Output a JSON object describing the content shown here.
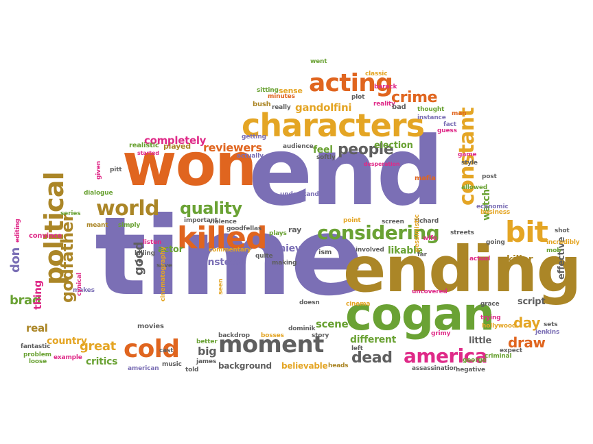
{
  "colors": {
    "purple": "#7b6fb5",
    "orange": "#e0651f",
    "green": "#6aa234",
    "gold": "#e4a524",
    "olive": "#ab8627",
    "gray": "#5f5f5f",
    "pink": "#df2a88"
  },
  "words": [
    {
      "t": "end",
      "c": "purple"
    },
    {
      "t": "time",
      "c": "purple"
    },
    {
      "t": "won",
      "c": "orange"
    },
    {
      "t": "ending",
      "c": "olive"
    },
    {
      "t": "cogan",
      "c": "green"
    },
    {
      "t": "characters",
      "c": "gold"
    },
    {
      "t": "political",
      "c": "olive"
    },
    {
      "t": "killed",
      "c": "orange"
    },
    {
      "t": "moment",
      "c": "gray"
    },
    {
      "t": "cold",
      "c": "orange"
    },
    {
      "t": "acting",
      "c": "orange"
    },
    {
      "t": "world",
      "c": "olive"
    },
    {
      "t": "bit",
      "c": "gold"
    },
    {
      "t": "considering",
      "c": "green"
    },
    {
      "t": "constant",
      "c": "gold"
    },
    {
      "t": "america",
      "c": "pink"
    },
    {
      "t": "quality",
      "c": "green"
    },
    {
      "t": "godfather",
      "c": "olive"
    },
    {
      "t": "crime",
      "c": "orange"
    },
    {
      "t": "people",
      "c": "gray"
    },
    {
      "t": "dead",
      "c": "gray"
    },
    {
      "t": "reviewers",
      "c": "orange"
    },
    {
      "t": "completely",
      "c": "pink"
    },
    {
      "t": "gandolfini",
      "c": "gold"
    },
    {
      "t": "great",
      "c": "gold"
    },
    {
      "t": "brad",
      "c": "green"
    },
    {
      "t": "don",
      "c": "purple"
    },
    {
      "t": "day",
      "c": "gold"
    },
    {
      "t": "draw",
      "c": "orange"
    },
    {
      "t": "killer",
      "c": "olive"
    },
    {
      "t": "thieves",
      "c": "purple"
    },
    {
      "t": "instead",
      "c": "purple"
    },
    {
      "t": "scene",
      "c": "green"
    },
    {
      "t": "watch",
      "c": "green"
    },
    {
      "t": "election",
      "c": "green"
    },
    {
      "t": "feel",
      "c": "green"
    },
    {
      "t": "different",
      "c": "green"
    },
    {
      "t": "likable",
      "c": "green"
    },
    {
      "t": "country",
      "c": "gold"
    },
    {
      "t": "critics",
      "c": "green"
    },
    {
      "t": "real",
      "c": "olive"
    },
    {
      "t": "thing",
      "c": "pink"
    },
    {
      "t": "good",
      "c": "gray"
    },
    {
      "t": "big",
      "c": "gray"
    },
    {
      "t": "script",
      "c": "gray"
    },
    {
      "t": "little",
      "c": "gray"
    },
    {
      "t": "effective",
      "c": "gray"
    },
    {
      "t": "background",
      "c": "gray"
    },
    {
      "t": "believable",
      "c": "gold"
    },
    {
      "t": "mafia",
      "c": "orange"
    },
    {
      "t": "actor",
      "c": "green"
    },
    {
      "t": "movies",
      "c": "gray"
    },
    {
      "t": "ray",
      "c": "gray"
    },
    {
      "t": "ism",
      "c": "gray"
    },
    {
      "t": "classic",
      "c": "gold"
    },
    {
      "t": "went",
      "c": "green"
    },
    {
      "t": "barack",
      "c": "pink"
    },
    {
      "t": "sense",
      "c": "gold"
    },
    {
      "t": "plot",
      "c": "gray"
    },
    {
      "t": "sitting",
      "c": "green"
    },
    {
      "t": "minutes",
      "c": "orange"
    },
    {
      "t": "reality",
      "c": "pink"
    },
    {
      "t": "bad",
      "c": "gray"
    },
    {
      "t": "thought",
      "c": "green"
    },
    {
      "t": "man",
      "c": "orange"
    },
    {
      "t": "bush",
      "c": "olive"
    },
    {
      "t": "really",
      "c": "gray"
    },
    {
      "t": "instance",
      "c": "purple"
    },
    {
      "t": "fact",
      "c": "purple"
    },
    {
      "t": "guess",
      "c": "pink"
    },
    {
      "t": "getting",
      "c": "purple"
    },
    {
      "t": "realistic",
      "c": "green"
    },
    {
      "t": "played",
      "c": "olive"
    },
    {
      "t": "audience",
      "c": "gray"
    },
    {
      "t": "started",
      "c": "pink"
    },
    {
      "t": "actually",
      "c": "purple"
    },
    {
      "t": "softly",
      "c": "gray"
    },
    {
      "t": "desperation",
      "c": "pink"
    },
    {
      "t": "game",
      "c": "pink"
    },
    {
      "t": "style",
      "c": "gray"
    },
    {
      "t": "post",
      "c": "gray"
    },
    {
      "t": "allowed",
      "c": "green"
    },
    {
      "t": "pitt",
      "c": "gray"
    },
    {
      "t": "given",
      "c": "pink"
    },
    {
      "t": "dialogue",
      "c": "green"
    },
    {
      "t": "understand",
      "c": "purple"
    },
    {
      "t": "economic",
      "c": "purple"
    },
    {
      "t": "business",
      "c": "gold"
    },
    {
      "t": "series",
      "c": "green"
    },
    {
      "t": "meant",
      "c": "olive"
    },
    {
      "t": "simply",
      "c": "green"
    },
    {
      "t": "important",
      "c": "gray"
    },
    {
      "t": "violence",
      "c": "gray"
    },
    {
      "t": "goodfellas",
      "c": "gray"
    },
    {
      "t": "point",
      "c": "gold"
    },
    {
      "t": "screen",
      "c": "gray"
    },
    {
      "t": "richard",
      "c": "gray"
    },
    {
      "t": "streets",
      "c": "gray"
    },
    {
      "t": "shot",
      "c": "gray"
    },
    {
      "t": "convince",
      "c": "pink"
    },
    {
      "t": "plays",
      "c": "green"
    },
    {
      "t": "listen",
      "c": "pink"
    },
    {
      "t": "killing",
      "c": "gray"
    },
    {
      "t": "ve",
      "c": "gray"
    },
    {
      "t": "editing",
      "c": "pink"
    },
    {
      "t": "commentary",
      "c": "gold"
    },
    {
      "t": "quite",
      "c": "gray"
    },
    {
      "t": "making",
      "c": "gray"
    },
    {
      "t": "involved",
      "c": "gray"
    },
    {
      "t": "far",
      "c": "gray"
    },
    {
      "t": "wife",
      "c": "pink"
    },
    {
      "t": "pessimistic",
      "c": "gold"
    },
    {
      "t": "going",
      "c": "gray"
    },
    {
      "t": "incredibly",
      "c": "gold"
    },
    {
      "t": "actual",
      "c": "pink"
    },
    {
      "t": "save",
      "c": "gray"
    },
    {
      "t": "makes",
      "c": "purple"
    },
    {
      "t": "fantastic",
      "c": "gray"
    },
    {
      "t": "cinematography",
      "c": "gold"
    },
    {
      "t": "doesn",
      "c": "gray"
    },
    {
      "t": "cinema",
      "c": "gold"
    },
    {
      "t": "grace",
      "c": "gray"
    },
    {
      "t": "trying",
      "c": "pink"
    },
    {
      "t": "hollywood",
      "c": "gold"
    },
    {
      "t": "sets",
      "c": "gray"
    },
    {
      "t": "jenkins",
      "c": "purple"
    },
    {
      "t": "mob",
      "c": "green"
    },
    {
      "t": "cynical",
      "c": "pink"
    },
    {
      "t": "loose",
      "c": "green"
    },
    {
      "t": "seen",
      "c": "gold"
    },
    {
      "t": "better",
      "c": "green"
    },
    {
      "t": "backdrop",
      "c": "gray"
    },
    {
      "t": "bosses",
      "c": "gold"
    },
    {
      "t": "dominik",
      "c": "gray"
    },
    {
      "t": "story",
      "c": "gray"
    },
    {
      "t": "left",
      "c": "gray"
    },
    {
      "t": "grimy",
      "c": "pink"
    },
    {
      "t": "expect",
      "c": "gray"
    },
    {
      "t": "criminal",
      "c": "green"
    },
    {
      "t": "problem",
      "c": "green"
    },
    {
      "t": "example",
      "c": "pink"
    },
    {
      "t": "cast",
      "c": "gray"
    },
    {
      "t": "james",
      "c": "gray"
    },
    {
      "t": "told",
      "c": "gray"
    },
    {
      "t": "music",
      "c": "gray"
    },
    {
      "t": "american",
      "c": "purple"
    },
    {
      "t": "heads",
      "c": "olive"
    },
    {
      "t": "george",
      "c": "green"
    },
    {
      "t": "negative",
      "c": "gray"
    },
    {
      "t": "assassination",
      "c": "gray"
    },
    {
      "t": "uncovered",
      "c": "pink"
    }
  ]
}
